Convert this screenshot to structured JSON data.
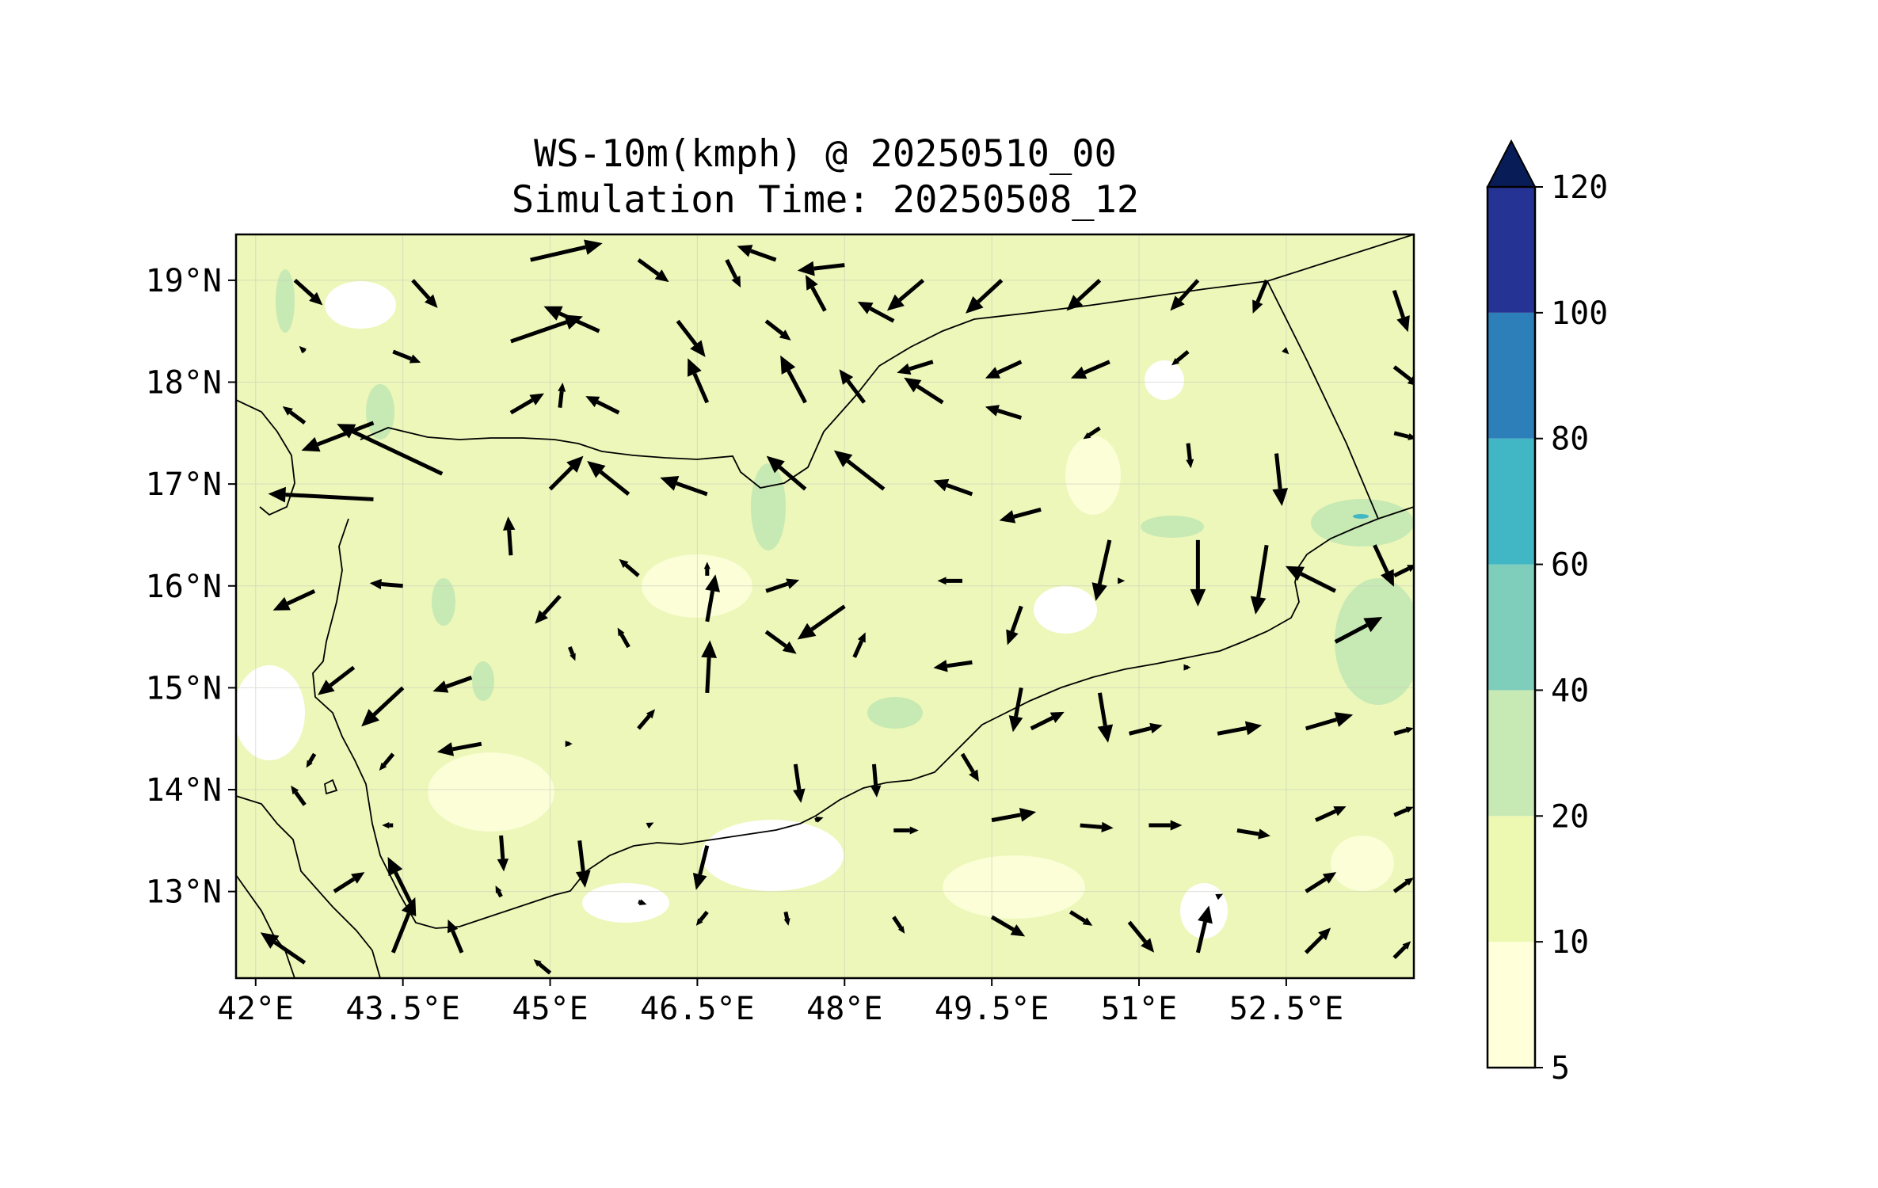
{
  "title": {
    "line1": "WS-10m(kmph) @ 20250510_00",
    "line2": "Simulation Time: 20250508_12"
  },
  "map": {
    "lon_range": [
      41.8,
      53.8
    ],
    "lat_range": [
      12.15,
      19.45
    ],
    "lon_ticks": [
      {
        "value": 42.0,
        "label": "42°E"
      },
      {
        "value": 43.5,
        "label": "43.5°E"
      },
      {
        "value": 45.0,
        "label": "45°E"
      },
      {
        "value": 46.5,
        "label": "46.5°E"
      },
      {
        "value": 48.0,
        "label": "48°E"
      },
      {
        "value": 49.5,
        "label": "49.5°E"
      },
      {
        "value": 51.0,
        "label": "51°E"
      },
      {
        "value": 52.5,
        "label": "52.5°E"
      }
    ],
    "lat_ticks": [
      {
        "value": 19,
        "label": "19°N"
      },
      {
        "value": 18,
        "label": "18°N"
      },
      {
        "value": 17,
        "label": "17°N"
      },
      {
        "value": 16,
        "label": "16°N"
      },
      {
        "value": 15,
        "label": "15°N"
      },
      {
        "value": 14,
        "label": "14°N"
      },
      {
        "value": 13,
        "label": "13°N"
      }
    ],
    "grid": true,
    "background_color": "#ecf7b9",
    "coastline_color": "#000000"
  },
  "colorbar": {
    "extend": "max",
    "levels": [
      5,
      10,
      20,
      40,
      60,
      80,
      100,
      120
    ],
    "tick_labels": [
      "5",
      "10",
      "20",
      "40",
      "60",
      "80",
      "100",
      "120"
    ],
    "colors": [
      "#ffffd9",
      "#edf8b1",
      "#c7e9b4",
      "#7fcdbb",
      "#41b6c4",
      "#2c7fb8",
      "#253494"
    ],
    "extend_color": "#081d58"
  },
  "wind_vectors": [
    {
      "lon": 42.4,
      "lat": 19.0,
      "u": 10,
      "v": -9
    },
    {
      "lon": 43.6,
      "lat": 19.0,
      "u": 9,
      "v": -10
    },
    {
      "lon": 44.8,
      "lat": 19.2,
      "u": 26,
      "v": 6
    },
    {
      "lon": 45.9,
      "lat": 19.2,
      "u": 11,
      "v": -8
    },
    {
      "lon": 46.8,
      "lat": 19.2,
      "u": 5,
      "v": -10
    },
    {
      "lon": 47.3,
      "lat": 19.2,
      "u": -14,
      "v": 5
    },
    {
      "lon": 48.0,
      "lat": 19.15,
      "u": -17,
      "v": -2
    },
    {
      "lon": 48.8,
      "lat": 19.0,
      "u": -13,
      "v": -11
    },
    {
      "lon": 49.6,
      "lat": 19.0,
      "u": -13,
      "v": -12
    },
    {
      "lon": 50.6,
      "lat": 19.0,
      "u": -12,
      "v": -11
    },
    {
      "lon": 51.6,
      "lat": 19.0,
      "u": -10,
      "v": -11
    },
    {
      "lon": 52.3,
      "lat": 19.0,
      "u": -5,
      "v": -12
    },
    {
      "lon": 53.6,
      "lat": 18.9,
      "u": 5,
      "v": -15
    },
    {
      "lon": 42.5,
      "lat": 18.3,
      "u": -2,
      "v": 2
    },
    {
      "lon": 43.4,
      "lat": 18.3,
      "u": 10,
      "v": -4
    },
    {
      "lon": 44.6,
      "lat": 18.4,
      "u": 26,
      "v": 9
    },
    {
      "lon": 45.5,
      "lat": 18.5,
      "u": -20,
      "v": 9
    },
    {
      "lon": 46.3,
      "lat": 18.6,
      "u": 10,
      "v": -13
    },
    {
      "lon": 47.2,
      "lat": 18.6,
      "u": 9,
      "v": -7
    },
    {
      "lon": 47.8,
      "lat": 18.7,
      "u": -7,
      "v": 13
    },
    {
      "lon": 48.5,
      "lat": 18.6,
      "u": -13,
      "v": 7
    },
    {
      "lon": 48.9,
      "lat": 18.2,
      "u": -13,
      "v": -4
    },
    {
      "lon": 49.8,
      "lat": 18.2,
      "u": -13,
      "v": -6
    },
    {
      "lon": 50.7,
      "lat": 18.2,
      "u": -14,
      "v": -6
    },
    {
      "lon": 51.5,
      "lat": 18.3,
      "u": -6,
      "v": -5
    },
    {
      "lon": 52.5,
      "lat": 18.3,
      "u": 1,
      "v": -1
    },
    {
      "lon": 53.6,
      "lat": 18.15,
      "u": 9,
      "v": -7
    },
    {
      "lon": 42.5,
      "lat": 17.6,
      "u": -8,
      "v": 6
    },
    {
      "lon": 43.2,
      "lat": 17.6,
      "u": -26,
      "v": -10
    },
    {
      "lon": 44.6,
      "lat": 17.7,
      "u": 12,
      "v": 7
    },
    {
      "lon": 45.1,
      "lat": 17.75,
      "u": 1,
      "v": 9
    },
    {
      "lon": 45.7,
      "lat": 17.7,
      "u": -12,
      "v": 6
    },
    {
      "lon": 46.6,
      "lat": 17.8,
      "u": -7,
      "v": 16
    },
    {
      "lon": 47.6,
      "lat": 17.8,
      "u": -9,
      "v": 17
    },
    {
      "lon": 48.2,
      "lat": 17.8,
      "u": -9,
      "v": 12
    },
    {
      "lon": 49.0,
      "lat": 17.8,
      "u": -14,
      "v": 9
    },
    {
      "lon": 49.8,
      "lat": 17.65,
      "u": -13,
      "v": 4
    },
    {
      "lon": 50.6,
      "lat": 17.55,
      "u": -6,
      "v": -4
    },
    {
      "lon": 51.5,
      "lat": 17.4,
      "u": 1,
      "v": -9
    },
    {
      "lon": 52.4,
      "lat": 17.3,
      "u": 2,
      "v": -19
    },
    {
      "lon": 53.6,
      "lat": 17.5,
      "u": 8,
      "v": -2
    },
    {
      "lon": 43.2,
      "lat": 16.85,
      "u": -38,
      "v": 2
    },
    {
      "lon": 43.9,
      "lat": 17.1,
      "u": -38,
      "v": 18
    },
    {
      "lon": 45.0,
      "lat": 16.95,
      "u": 12,
      "v": 12
    },
    {
      "lon": 45.8,
      "lat": 16.9,
      "u": -15,
      "v": 12
    },
    {
      "lon": 46.6,
      "lat": 16.9,
      "u": -17,
      "v": 6
    },
    {
      "lon": 47.6,
      "lat": 16.95,
      "u": -14,
      "v": 12
    },
    {
      "lon": 48.4,
      "lat": 16.95,
      "u": -18,
      "v": 14
    },
    {
      "lon": 49.3,
      "lat": 16.9,
      "u": -14,
      "v": 5
    },
    {
      "lon": 50.0,
      "lat": 16.75,
      "u": -15,
      "v": -4
    },
    {
      "lon": 50.7,
      "lat": 16.45,
      "u": -5,
      "v": -22
    },
    {
      "lon": 51.6,
      "lat": 16.45,
      "u": 0,
      "v": -24
    },
    {
      "lon": 52.3,
      "lat": 16.4,
      "u": -4,
      "v": -25
    },
    {
      "lon": 53.4,
      "lat": 16.4,
      "u": 7,
      "v": -15
    },
    {
      "lon": 42.6,
      "lat": 15.95,
      "u": -15,
      "v": -7
    },
    {
      "lon": 43.5,
      "lat": 16.0,
      "u": -12,
      "v": 1
    },
    {
      "lon": 44.6,
      "lat": 16.3,
      "u": -1,
      "v": 14
    },
    {
      "lon": 45.1,
      "lat": 15.9,
      "u": -9,
      "v": -10
    },
    {
      "lon": 45.9,
      "lat": 16.1,
      "u": -7,
      "v": 6
    },
    {
      "lon": 46.6,
      "lat": 16.1,
      "u": 0,
      "v": 5
    },
    {
      "lon": 47.2,
      "lat": 15.95,
      "u": 12,
      "v": 4
    },
    {
      "lon": 48.0,
      "lat": 15.8,
      "u": -17,
      "v": -12
    },
    {
      "lon": 49.2,
      "lat": 16.05,
      "u": -9,
      "v": 0
    },
    {
      "lon": 49.8,
      "lat": 15.8,
      "u": -5,
      "v": -14
    },
    {
      "lon": 50.8,
      "lat": 16.05,
      "u": 2,
      "v": 0
    },
    {
      "lon": 53.0,
      "lat": 15.95,
      "u": -18,
      "v": 9
    },
    {
      "lon": 53.0,
      "lat": 15.45,
      "u": 17,
      "v": 9
    },
    {
      "lon": 53.6,
      "lat": 16.1,
      "u": 8,
      "v": 4
    },
    {
      "lon": 43.0,
      "lat": 15.2,
      "u": -13,
      "v": -10
    },
    {
      "lon": 43.5,
      "lat": 15.0,
      "u": -15,
      "v": -14
    },
    {
      "lon": 44.2,
      "lat": 15.1,
      "u": -14,
      "v": -5
    },
    {
      "lon": 45.2,
      "lat": 15.4,
      "u": 2,
      "v": -5
    },
    {
      "lon": 45.8,
      "lat": 15.4,
      "u": -4,
      "v": 7
    },
    {
      "lon": 46.6,
      "lat": 15.65,
      "u": 3,
      "v": 17
    },
    {
      "lon": 47.2,
      "lat": 15.55,
      "u": 11,
      "v": -8
    },
    {
      "lon": 48.1,
      "lat": 15.3,
      "u": 4,
      "v": 9
    },
    {
      "lon": 49.3,
      "lat": 15.25,
      "u": -14,
      "v": -2
    },
    {
      "lon": 49.8,
      "lat": 15.0,
      "u": -3,
      "v": -16
    },
    {
      "lon": 50.6,
      "lat": 14.95,
      "u": 3,
      "v": -18
    },
    {
      "lon": 51.5,
      "lat": 15.2,
      "u": 1,
      "v": 0
    },
    {
      "lon": 42.6,
      "lat": 14.35,
      "u": -3,
      "v": -5
    },
    {
      "lon": 43.4,
      "lat": 14.35,
      "u": -5,
      "v": -6
    },
    {
      "lon": 44.3,
      "lat": 14.45,
      "u": -16,
      "v": -3
    },
    {
      "lon": 45.2,
      "lat": 14.45,
      "u": 1,
      "v": 0
    },
    {
      "lon": 45.9,
      "lat": 14.6,
      "u": 6,
      "v": 7
    },
    {
      "lon": 46.6,
      "lat": 14.95,
      "u": 1,
      "v": 19
    },
    {
      "lon": 47.5,
      "lat": 14.25,
      "u": 2,
      "v": -14
    },
    {
      "lon": 48.3,
      "lat": 14.25,
      "u": 1,
      "v": -12
    },
    {
      "lon": 49.2,
      "lat": 14.35,
      "u": 6,
      "v": -10
    },
    {
      "lon": 49.9,
      "lat": 14.6,
      "u": 12,
      "v": 6
    },
    {
      "lon": 50.9,
      "lat": 14.55,
      "u": 12,
      "v": 3
    },
    {
      "lon": 51.8,
      "lat": 14.55,
      "u": 16,
      "v": 3
    },
    {
      "lon": 52.7,
      "lat": 14.6,
      "u": 17,
      "v": 5
    },
    {
      "lon": 53.6,
      "lat": 14.55,
      "u": 7,
      "v": 2
    },
    {
      "lon": 42.5,
      "lat": 13.85,
      "u": -5,
      "v": 7
    },
    {
      "lon": 43.4,
      "lat": 13.65,
      "u": -4,
      "v": 0
    },
    {
      "lon": 44.5,
      "lat": 13.55,
      "u": 1,
      "v": -13
    },
    {
      "lon": 45.3,
      "lat": 13.5,
      "u": 2,
      "v": -17
    },
    {
      "lon": 46.0,
      "lat": 13.65,
      "u": 2,
      "v": 1
    },
    {
      "lon": 46.6,
      "lat": 13.45,
      "u": -4,
      "v": -16
    },
    {
      "lon": 47.7,
      "lat": 13.7,
      "u": 3,
      "v": 1
    },
    {
      "lon": 48.5,
      "lat": 13.6,
      "u": 9,
      "v": 0
    },
    {
      "lon": 49.5,
      "lat": 13.7,
      "u": 16,
      "v": 3
    },
    {
      "lon": 50.4,
      "lat": 13.65,
      "u": 12,
      "v": -1
    },
    {
      "lon": 51.1,
      "lat": 13.65,
      "u": 12,
      "v": 0
    },
    {
      "lon": 52.0,
      "lat": 13.6,
      "u": 12,
      "v": -2
    },
    {
      "lon": 52.8,
      "lat": 13.7,
      "u": 11,
      "v": 5
    },
    {
      "lon": 53.6,
      "lat": 13.75,
      "u": 7,
      "v": 3
    },
    {
      "lon": 42.8,
      "lat": 13.0,
      "u": 11,
      "v": 7
    },
    {
      "lon": 43.6,
      "lat": 12.85,
      "u": -9,
      "v": 18
    },
    {
      "lon": 44.5,
      "lat": 12.95,
      "u": -2,
      "v": 4
    },
    {
      "lon": 45.0,
      "lat": 12.65,
      "u": 0,
      "v": 0
    },
    {
      "lon": 45.9,
      "lat": 12.9,
      "u": 3,
      "v": -1
    },
    {
      "lon": 46.6,
      "lat": 12.8,
      "u": -4,
      "v": -5
    },
    {
      "lon": 47.4,
      "lat": 12.8,
      "u": 1,
      "v": -5
    },
    {
      "lon": 48.5,
      "lat": 12.75,
      "u": 4,
      "v": -6
    },
    {
      "lon": 49.5,
      "lat": 12.75,
      "u": 12,
      "v": -7
    },
    {
      "lon": 50.3,
      "lat": 12.8,
      "u": 8,
      "v": -5
    },
    {
      "lon": 50.9,
      "lat": 12.7,
      "u": 9,
      "v": -11
    },
    {
      "lon": 51.8,
      "lat": 12.95,
      "u": 2,
      "v": 1
    },
    {
      "lon": 52.7,
      "lat": 13.0,
      "u": 11,
      "v": 7
    },
    {
      "lon": 53.6,
      "lat": 13.0,
      "u": 7,
      "v": 5
    },
    {
      "lon": 42.5,
      "lat": 12.3,
      "u": -16,
      "v": 11
    },
    {
      "lon": 43.4,
      "lat": 12.4,
      "u": 8,
      "v": 20
    },
    {
      "lon": 44.1,
      "lat": 12.4,
      "u": -5,
      "v": 12
    },
    {
      "lon": 45.0,
      "lat": 12.2,
      "u": -6,
      "v": 5
    },
    {
      "lon": 51.6,
      "lat": 12.4,
      "u": 4,
      "v": 17
    },
    {
      "lon": 52.7,
      "lat": 12.4,
      "u": 9,
      "v": 9
    },
    {
      "lon": 53.6,
      "lat": 12.35,
      "u": 6,
      "v": 6
    }
  ]
}
